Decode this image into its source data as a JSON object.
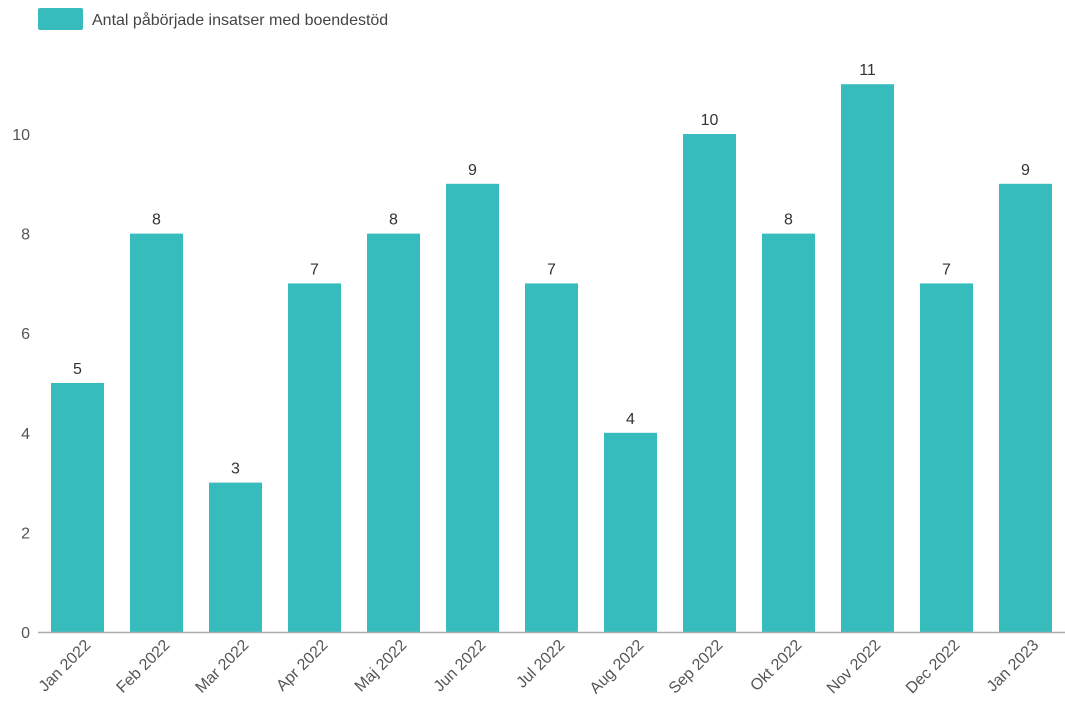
{
  "chart_data": {
    "type": "bar",
    "title": "",
    "xlabel": "",
    "ylabel": "",
    "legend": {
      "position": "top-left",
      "entries": [
        "Antal påbörjade insatser med boendestöd"
      ]
    },
    "colors": {
      "bar": "#36bcbc",
      "axis": "#aaaaaa",
      "text": "#555555"
    },
    "grid": false,
    "ylim": [
      0,
      11.5
    ],
    "yticks": [
      0,
      2,
      4,
      6,
      8,
      10
    ],
    "categories": [
      "Jan 2022",
      "Feb 2022",
      "Mar 2022",
      "Apr 2022",
      "Maj 2022",
      "Jun 2022",
      "Jul 2022",
      "Aug 2022",
      "Sep 2022",
      "Okt 2022",
      "Nov 2022",
      "Dec 2022",
      "Jan 2023"
    ],
    "series": [
      {
        "name": "Antal påbörjade insatser med boendestöd",
        "values": [
          5,
          8,
          3,
          7,
          8,
          9,
          7,
          4,
          10,
          8,
          11,
          7,
          9
        ]
      }
    ]
  }
}
